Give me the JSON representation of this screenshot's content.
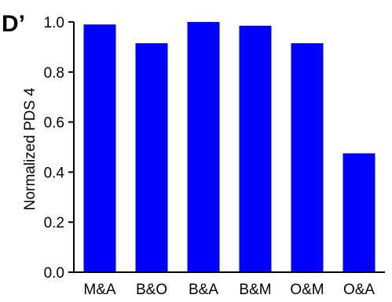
{
  "panel_label": "D’",
  "chart_data": {
    "type": "bar",
    "categories": [
      "M&A",
      "B&O",
      "B&A",
      "B&M",
      "O&M",
      "O&A"
    ],
    "values": [
      0.99,
      0.915,
      1.0,
      0.985,
      0.915,
      0.475
    ],
    "title": "",
    "xlabel": "",
    "ylabel": "Normalized PDS 4",
    "ylim": [
      0,
      1.0
    ],
    "yticks": [
      0.0,
      0.2,
      0.4,
      0.6,
      0.8,
      1.0
    ],
    "ytick_labels": [
      "0.0",
      "0.2",
      "0.4",
      "0.6",
      "0.8",
      "1.0"
    ],
    "bar_color": "#0000ff",
    "grid": false,
    "legend": "none"
  }
}
